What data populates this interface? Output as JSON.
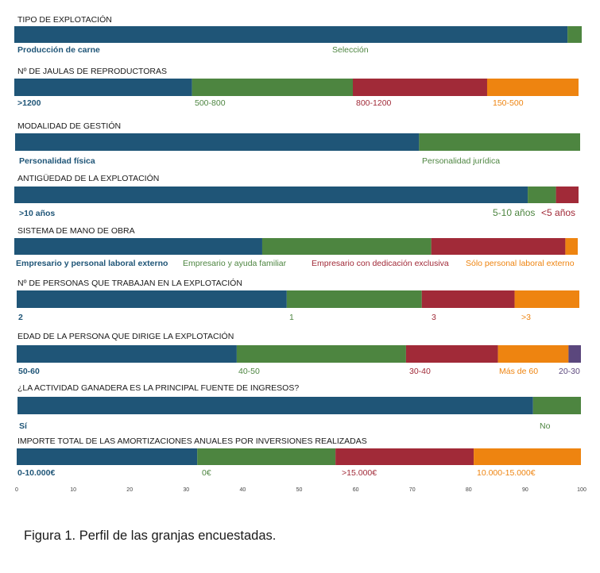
{
  "colors": {
    "blue": "#1f5577",
    "green": "#4d8540",
    "red": "#a12a38",
    "orange": "#ee8410",
    "purple": "#5b477d",
    "title_text": "#1a1a1a",
    "axis_text": "#444444"
  },
  "chart_data": {
    "type": "bar",
    "orientation": "horizontal",
    "stacked": true,
    "xlim": [
      0,
      100
    ],
    "xticks": [
      "0",
      "10",
      "20",
      "30",
      "40",
      "50",
      "60",
      "70",
      "80",
      "90",
      "100"
    ],
    "grid": false,
    "legend": "none",
    "panels": [
      {
        "title": "TIPO DE EXPLOTACIÓN",
        "segments": [
          {
            "label": "Producción de carne",
            "value": 97.5,
            "color": "blue"
          },
          {
            "label": "Selección",
            "value": 2.5,
            "color": "green"
          }
        ]
      },
      {
        "title": "Nº DE JAULAS DE REPRODUCTORAS",
        "segments": [
          {
            "label": ">1200",
            "value": 31.5,
            "color": "blue"
          },
          {
            "label": "500-800",
            "value": 28.5,
            "color": "green"
          },
          {
            "label": "800-1200",
            "value": 23.8,
            "color": "red"
          },
          {
            "label": "150-500",
            "value": 16.2,
            "color": "orange"
          }
        ]
      },
      {
        "title": "MODALIDAD DE GESTIÓN",
        "segments": [
          {
            "label": "Personalidad física",
            "value": 71.5,
            "color": "blue"
          },
          {
            "label": "Personalidad jurídica",
            "value": 28.5,
            "color": "green"
          }
        ]
      },
      {
        "title": "ANTIGÜEDAD DE LA EXPLOTACIÓN",
        "segments": [
          {
            "label": ">10 años",
            "value": 91,
            "color": "blue"
          },
          {
            "label": "5-10 años",
            "value": 5,
            "color": "green"
          },
          {
            "label": "<5 años",
            "value": 4,
            "color": "red"
          }
        ]
      },
      {
        "title": "SISTEMA DE MANO DE OBRA",
        "segments": [
          {
            "label": "Empresario y personal laboral externo",
            "value": 44,
            "color": "blue"
          },
          {
            "label": "Empresario y ayuda familiar",
            "value": 30,
            "color": "green"
          },
          {
            "label": "Empresario con dedicación exclusiva",
            "value": 23.8,
            "color": "red"
          },
          {
            "label": "Sólo personal laboral externo",
            "value": 2.2,
            "color": "orange"
          }
        ]
      },
      {
        "title": "Nº DE PERSONAS QUE TRABAJAN EN LA EXPLOTACIÓN",
        "segments": [
          {
            "label": "2",
            "value": 48,
            "color": "blue"
          },
          {
            "label": "1",
            "value": 24,
            "color": "green"
          },
          {
            "label": "3",
            "value": 16.5,
            "color": "red"
          },
          {
            "label": ">3",
            "value": 11.5,
            "color": "orange"
          }
        ]
      },
      {
        "title": "EDAD DE LA PERSONA QUE DIRIGE LA EXPLOTACIÓN",
        "segments": [
          {
            "label": "50-60",
            "value": 39,
            "color": "blue"
          },
          {
            "label": "40-50",
            "value": 30,
            "color": "green"
          },
          {
            "label": "30-40",
            "value": 16.3,
            "color": "red"
          },
          {
            "label": "Más de 60",
            "value": 12.5,
            "color": "orange"
          },
          {
            "label": "20-30",
            "value": 2.2,
            "color": "purple"
          }
        ]
      },
      {
        "title": "¿LA ACTIVIDAD GANADERA ES LA PRINCIPAL FUENTE DE INGRESOS?",
        "segments": [
          {
            "label": "Sí",
            "value": 91.5,
            "color": "blue"
          },
          {
            "label": "No",
            "value": 8.5,
            "color": "green"
          }
        ]
      },
      {
        "title": "IMPORTE TOTAL DE LAS AMORTIZACIONES ANUALES POR INVERSIONES REALIZADAS",
        "segments": [
          {
            "label": "0-10.000€",
            "value": 32,
            "color": "blue"
          },
          {
            "label": "0€",
            "value": 24.5,
            "color": "green"
          },
          {
            "label": ">15.000€",
            "value": 24.5,
            "color": "red"
          },
          {
            "label": "10.000-15.000€",
            "value": 19,
            "color": "orange"
          }
        ]
      }
    ]
  },
  "caption": "Figura 1. Perfil de las granjas encuestadas."
}
